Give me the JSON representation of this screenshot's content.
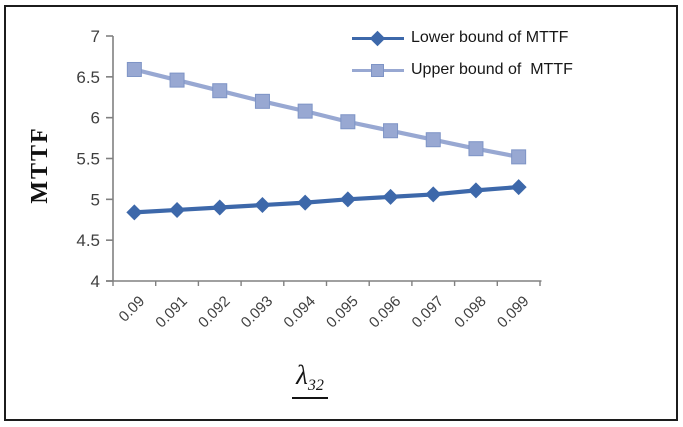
{
  "chart_data": {
    "type": "line",
    "title": "",
    "categories": [
      "0.09",
      "0.091",
      "0.092",
      "0.093",
      "0.094",
      "0.095",
      "0.096",
      "0.097",
      "0.098",
      "0.099"
    ],
    "series": [
      {
        "name": "Lower bound of MTTF",
        "marker": "diamond",
        "color": "#3d68aa",
        "values": [
          4.84,
          4.87,
          4.9,
          4.93,
          4.96,
          5.0,
          5.03,
          5.06,
          5.11,
          5.15
        ]
      },
      {
        "name": "Upper bound of  MTTF",
        "marker": "square",
        "color": "#98a8d2",
        "values": [
          6.59,
          6.46,
          6.33,
          6.2,
          6.08,
          5.95,
          5.84,
          5.73,
          5.62,
          5.52
        ]
      }
    ],
    "xlabel": {
      "symbol": "λ",
      "subscript": "32"
    },
    "ylabel": "MTTF",
    "ylim": [
      4,
      7
    ],
    "yticks": [
      "4",
      "4.5",
      "5",
      "5.5",
      "6",
      "6.5",
      "7"
    ],
    "grid": false,
    "legend_position": "top-right",
    "axis_color": "#808080",
    "tick_label_color": "#3f3f3f"
  }
}
